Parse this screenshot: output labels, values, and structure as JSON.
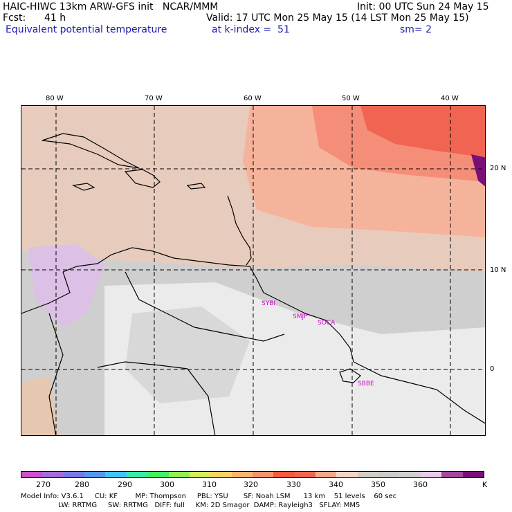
{
  "header": {
    "title_left": "HAIC-HIWC 13km ARW-GFS init   NCAR/MMM",
    "init": "Init: 00 UTC Sun 24 May 15",
    "fcst_label": "Fcst:",
    "fcst_value": "41 h",
    "valid": "Valid: 17 UTC Mon 25 May 15 (14 LST Mon 25 May 15)",
    "field": "Equivalent potential temperature",
    "level": "at k-index =  51",
    "smoothing": "sm= 2"
  },
  "axes": {
    "longitude_labels": [
      "80 W",
      "70 W",
      "60 W",
      "50 W",
      "40 W"
    ],
    "latitude_labels": [
      "20 N",
      "10 N",
      "0"
    ]
  },
  "stations": [
    "SYBI",
    "SMJP",
    "SOCA",
    "SBBE"
  ],
  "colorbar": {
    "colors": [
      "#cc4fcc",
      "#a26fd8",
      "#7b78e8",
      "#5598ee",
      "#3fc7f1",
      "#35eca9",
      "#3ff262",
      "#95ef50",
      "#d6ef57",
      "#f8d561",
      "#f8b56d",
      "#f8946d",
      "#f6593c",
      "#f06552",
      "#f6a88a",
      "#f5d6c2",
      "#d3cdc8",
      "#cbcbcb",
      "#d0d0d0",
      "#e8cbe8",
      "#a3479f",
      "#7a0f78"
    ],
    "labels": [
      "270",
      "280",
      "290",
      "300",
      "310",
      "320",
      "330",
      "340",
      "350",
      "360"
    ],
    "unit": "K"
  },
  "model_info": {
    "line1": "Model Info: V3.6.1     CU: KF        MP: Thompson     PBL: YSU       SF: Noah LSM      13 km    51 levels    60 sec",
    "line2": "LW: RRTMG     SW: RRTMG   DIFF: full     KM: 2D Smagor  DAMP: Rayleigh3   SFLAY: MM5"
  }
}
